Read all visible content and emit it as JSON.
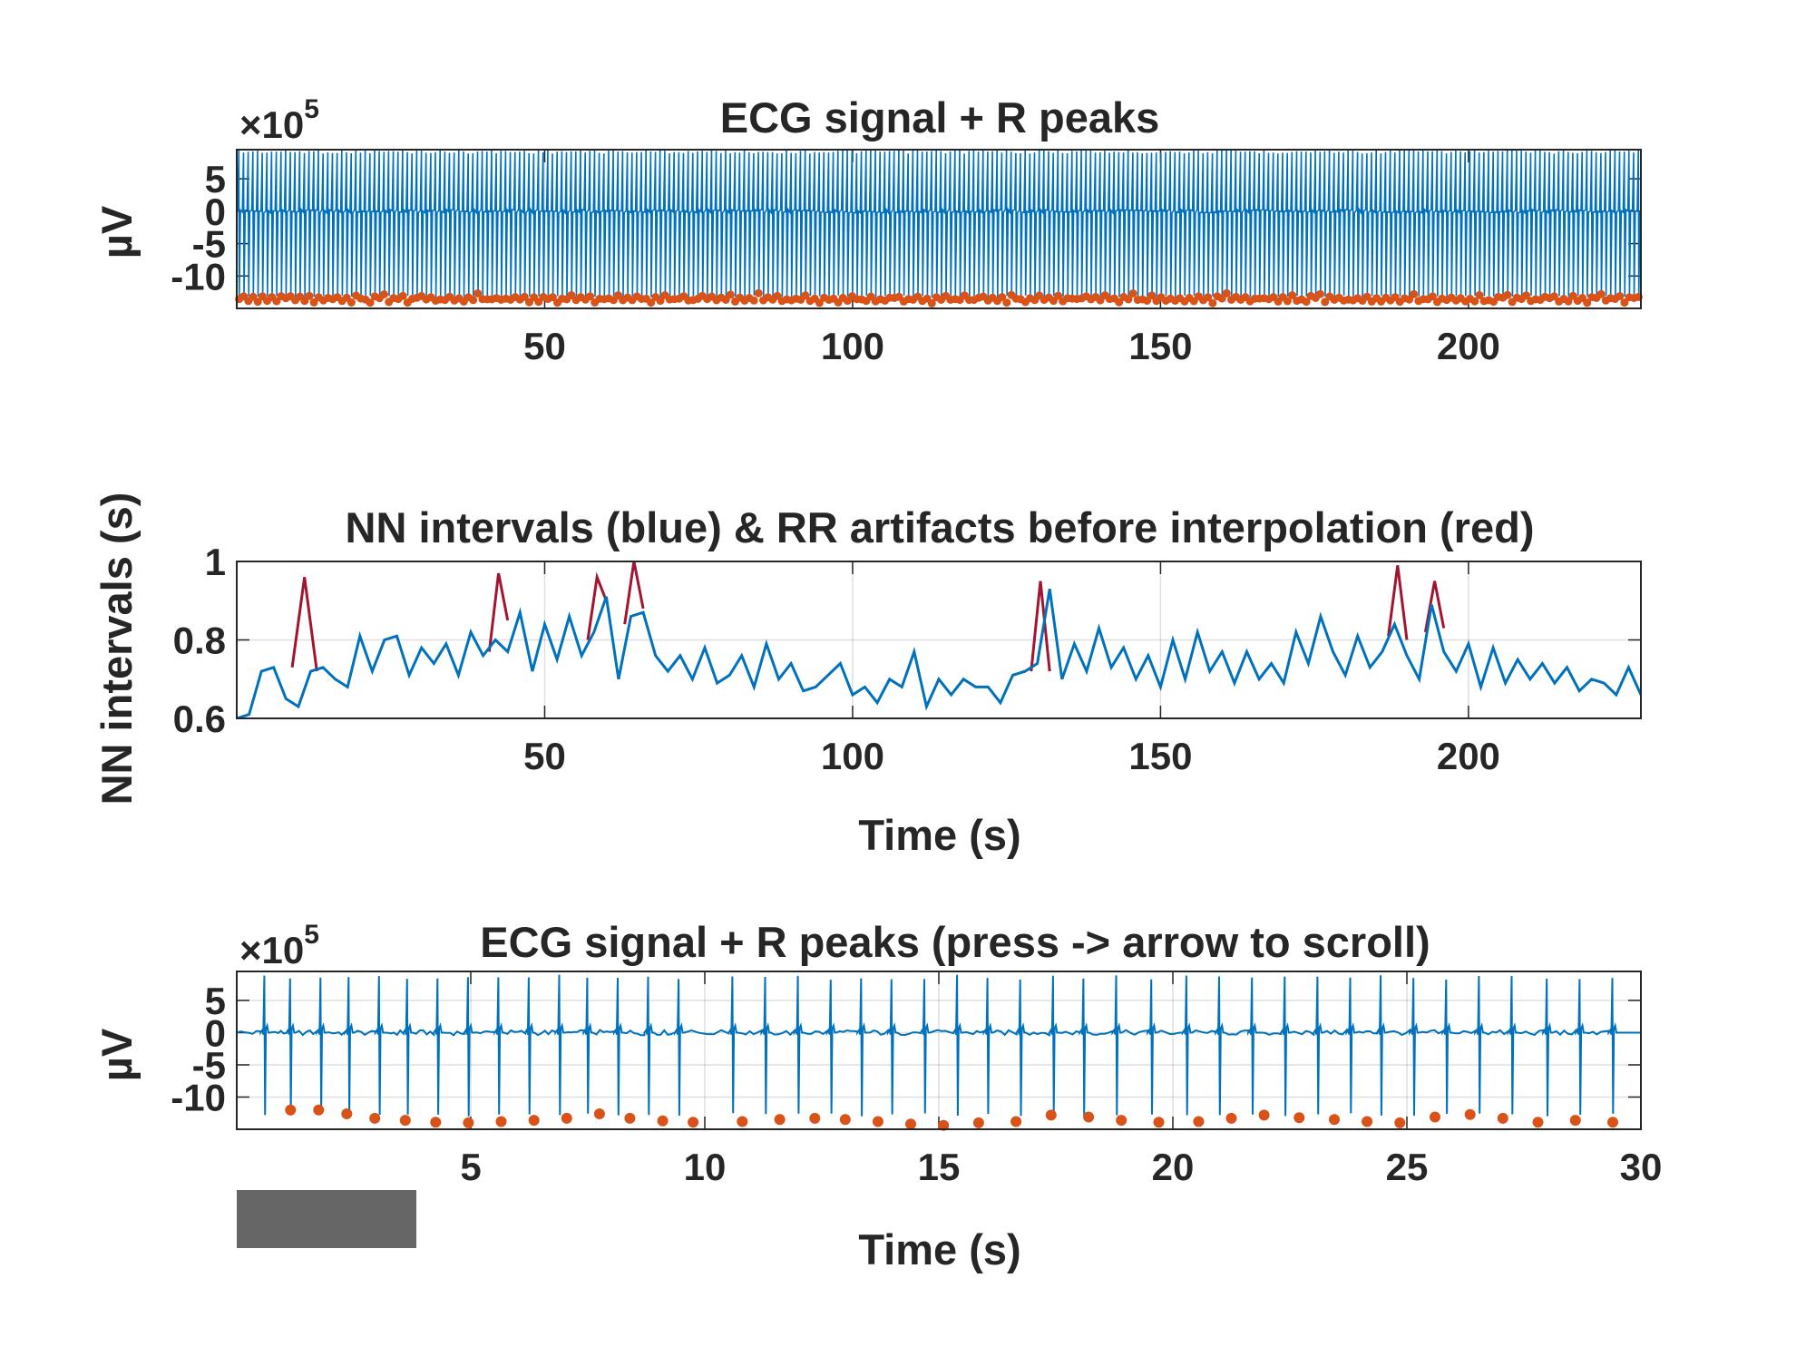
{
  "colors": {
    "signal": "#0072BD",
    "peaks": "#D95319",
    "artifacts": "#A2142F",
    "axis": "#262626",
    "grid": "#262626",
    "scrollbar": "#666666"
  },
  "chart_data": [
    {
      "type": "line",
      "title": "ECG signal + R peaks",
      "ylabel": "µV",
      "xlabel": "",
      "exponent_label": "×10",
      "exponent_power": "5",
      "xlim": [
        0,
        228
      ],
      "ylim": [
        -15,
        9.5
      ],
      "xticks": [
        50,
        100,
        150,
        200
      ],
      "xticklabels": [
        "50",
        "100",
        "150",
        "200"
      ],
      "yticks": [
        5,
        0,
        -5,
        -10
      ],
      "yticklabels": [
        "5",
        "0",
        "-5",
        "-10"
      ],
      "xgrid": true,
      "series": [
        {
          "kind": "ecg",
          "beat_count": 300,
          "peak_value": 9.5,
          "trough_value": -13,
          "baseline": 0
        },
        {
          "kind": "rpeaks",
          "level_values": [
            -13.6,
            -13.2,
            -13.8,
            -13.4,
            -13.9,
            -13.1,
            -13.7,
            -13.5,
            -14.0,
            -13.3,
            -13.6,
            -12.9,
            -13.8,
            -13.4,
            -13.7,
            -13.2,
            -13.9,
            -13.5,
            -13.6,
            -13.3
          ]
        }
      ]
    },
    {
      "type": "line",
      "title": "NN intervals (blue) & RR artifacts before interpolation (red)",
      "ylabel": "NN intervals (s)",
      "xlabel": "Time (s)",
      "xlim": [
        0,
        228
      ],
      "ylim": [
        0.6,
        1.0
      ],
      "xticks": [
        50,
        100,
        150,
        200
      ],
      "xticklabels": [
        "50",
        "100",
        "150",
        "200"
      ],
      "yticks": [
        1,
        0.8,
        0.6
      ],
      "yticklabels": [
        "1",
        "0.8",
        "0.6"
      ],
      "xgrid": true,
      "ygrid": true,
      "series": [
        {
          "kind": "nn",
          "x": [
            0,
            2,
            4,
            6,
            8,
            10,
            12,
            14,
            16,
            18,
            20,
            22,
            24,
            26,
            28,
            30,
            32,
            34,
            36,
            38,
            40,
            42,
            44,
            46,
            48,
            50,
            52,
            54,
            56,
            58,
            60,
            62,
            64,
            66,
            68,
            70,
            72,
            74,
            76,
            78,
            80,
            82,
            84,
            86,
            88,
            90,
            92,
            94,
            96,
            98,
            100,
            102,
            104,
            106,
            108,
            110,
            112,
            114,
            116,
            118,
            120,
            122,
            124,
            126,
            128,
            130,
            132,
            134,
            136,
            138,
            140,
            142,
            144,
            146,
            148,
            150,
            152,
            154,
            156,
            158,
            160,
            162,
            164,
            166,
            168,
            170,
            172,
            174,
            176,
            178,
            180,
            182,
            184,
            186,
            188,
            190,
            192,
            194,
            196,
            198,
            200,
            202,
            204,
            206,
            208,
            210,
            212,
            214,
            216,
            218,
            220,
            222,
            224,
            226,
            228
          ],
          "values": [
            0.6,
            0.61,
            0.72,
            0.73,
            0.65,
            0.63,
            0.72,
            0.73,
            0.7,
            0.68,
            0.81,
            0.72,
            0.8,
            0.81,
            0.71,
            0.78,
            0.74,
            0.79,
            0.71,
            0.82,
            0.76,
            0.8,
            0.77,
            0.87,
            0.72,
            0.84,
            0.75,
            0.86,
            0.76,
            0.82,
            0.91,
            0.7,
            0.86,
            0.87,
            0.76,
            0.72,
            0.76,
            0.7,
            0.78,
            0.69,
            0.71,
            0.76,
            0.68,
            0.79,
            0.7,
            0.74,
            0.67,
            0.68,
            0.71,
            0.74,
            0.66,
            0.68,
            0.64,
            0.7,
            0.68,
            0.77,
            0.63,
            0.7,
            0.66,
            0.7,
            0.68,
            0.68,
            0.64,
            0.71,
            0.72,
            0.74,
            0.93,
            0.7,
            0.79,
            0.72,
            0.83,
            0.73,
            0.78,
            0.7,
            0.76,
            0.68,
            0.8,
            0.7,
            0.82,
            0.72,
            0.77,
            0.69,
            0.77,
            0.7,
            0.74,
            0.69,
            0.82,
            0.74,
            0.86,
            0.77,
            0.71,
            0.81,
            0.73,
            0.77,
            0.84,
            0.76,
            0.7,
            0.89,
            0.77,
            0.72,
            0.79,
            0.68,
            0.78,
            0.69,
            0.75,
            0.7,
            0.74,
            0.69,
            0.73,
            0.67,
            0.7,
            0.69,
            0.66,
            0.73,
            0.66
          ]
        },
        {
          "kind": "artifacts",
          "segments": [
            {
              "x": [
                9,
                11,
                13
              ],
              "values": [
                0.73,
                0.96,
                0.72
              ]
            },
            {
              "x": [
                41,
                42.5,
                44
              ],
              "values": [
                0.77,
                0.97,
                0.85
              ]
            },
            {
              "x": [
                57,
                58.5,
                60
              ],
              "values": [
                0.8,
                0.96,
                0.9
              ]
            },
            {
              "x": [
                63,
                64.5,
                66
              ],
              "values": [
                0.84,
                1.0,
                0.88
              ]
            },
            {
              "x": [
                129,
                130.5,
                132
              ],
              "values": [
                0.72,
                0.95,
                0.72
              ]
            },
            {
              "x": [
                187,
                188.5,
                190
              ],
              "values": [
                0.81,
                0.99,
                0.8
              ]
            },
            {
              "x": [
                193,
                194.5,
                196
              ],
              "values": [
                0.82,
                0.95,
                0.83
              ]
            }
          ]
        }
      ]
    },
    {
      "type": "line",
      "title": "ECG signal + R peaks (press -> arrow to scroll)",
      "ylabel": "µV",
      "xlabel": "Time (s)",
      "exponent_label": "×10",
      "exponent_power": "5",
      "xlim": [
        0,
        30
      ],
      "ylim": [
        -15,
        9.5
      ],
      "xticks": [
        5,
        10,
        15,
        20,
        25,
        30
      ],
      "xticklabels": [
        "5",
        "10",
        "15",
        "20",
        "25",
        "30"
      ],
      "yticks": [
        5,
        0,
        -5,
        -10
      ],
      "yticklabels": [
        "5",
        "0",
        "-5",
        "-10"
      ],
      "xgrid": true,
      "ygrid": true,
      "series": [
        {
          "kind": "ecg_beats",
          "beat_times": [
            0.6,
            1.15,
            1.8,
            2.4,
            3.05,
            3.65,
            4.3,
            4.95,
            5.6,
            6.25,
            6.9,
            7.5,
            8.15,
            8.8,
            9.45,
            10.6,
            11.3,
            12.0,
            12.7,
            13.35,
            14.0,
            14.7,
            15.4,
            16.05,
            16.75,
            17.45,
            18.1,
            18.8,
            19.55,
            20.3,
            21.0,
            21.7,
            22.4,
            23.1,
            23.8,
            24.45,
            25.15,
            25.85,
            26.55,
            27.25,
            28.0,
            28.7,
            29.4
          ],
          "peak_value": 9.0,
          "trough_value": -13
        },
        {
          "kind": "rpeaks",
          "x": [
            1.15,
            1.75,
            2.35,
            2.95,
            3.6,
            4.25,
            4.95,
            5.65,
            6.35,
            7.05,
            7.75,
            8.4,
            9.1,
            9.75,
            10.8,
            11.6,
            12.35,
            13.0,
            13.7,
            14.4,
            15.1,
            15.85,
            16.65,
            17.4,
            18.2,
            18.9,
            19.7,
            20.55,
            21.25,
            21.95,
            22.7,
            23.45,
            24.15,
            24.85,
            25.6,
            26.35,
            27.05,
            27.8,
            28.6,
            29.4
          ],
          "values": [
            -12.0,
            -12.0,
            -12.6,
            -13.3,
            -13.6,
            -13.9,
            -14.0,
            -13.8,
            -13.6,
            -13.3,
            -12.6,
            -13.3,
            -13.7,
            -13.9,
            -13.8,
            -13.5,
            -13.3,
            -13.5,
            -13.8,
            -14.2,
            -14.4,
            -14.0,
            -13.8,
            -12.8,
            -13.1,
            -13.6,
            -13.9,
            -13.8,
            -13.3,
            -12.8,
            -13.2,
            -13.5,
            -13.8,
            -14.0,
            -13.1,
            -12.7,
            -13.3,
            -13.9,
            -13.6,
            -13.9
          ]
        }
      ]
    }
  ]
}
